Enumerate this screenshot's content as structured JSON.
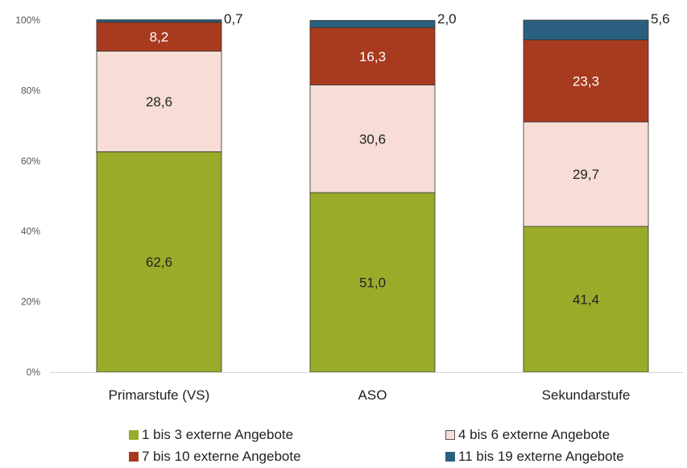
{
  "chart_data": {
    "type": "bar",
    "stacked": true,
    "categories": [
      "Primarstufe (VS)",
      "ASO",
      "Sekundarstufe"
    ],
    "ylim": [
      0,
      100
    ],
    "yticks": [
      "0%",
      "20%",
      "40%",
      "60%",
      "80%",
      "100%"
    ],
    "ytick_values": [
      0,
      20,
      40,
      60,
      80,
      100
    ],
    "grid": false,
    "legend_position": "bottom",
    "series": [
      {
        "name": "1 bis 3 externe Angebote",
        "values": [
          62.6,
          51.0,
          41.4
        ],
        "labels": [
          "62,6",
          "51,0",
          "41,4"
        ],
        "color": "#9aab2a",
        "label_color": "#222222",
        "label_outside": false
      },
      {
        "name": "4 bis 6 externe Angebote",
        "values": [
          28.6,
          30.6,
          29.7
        ],
        "labels": [
          "28,6",
          "30,6",
          "29,7"
        ],
        "color": "#f7ddd6",
        "label_color": "#222222",
        "label_outside": false
      },
      {
        "name": "7 bis 10 externe Angebote",
        "values": [
          8.2,
          16.3,
          23.3
        ],
        "labels": [
          "8,2",
          "16,3",
          "23,3"
        ],
        "color": "#a83a1f",
        "label_color": "#ffffff",
        "label_outside": false
      },
      {
        "name": "11 bis 19 externe Angebote",
        "values": [
          0.7,
          2.0,
          5.6
        ],
        "labels": [
          "0,7",
          "2,0",
          "5,6"
        ],
        "color": "#2a5f80",
        "label_color": "#222222",
        "label_outside": true
      }
    ]
  }
}
